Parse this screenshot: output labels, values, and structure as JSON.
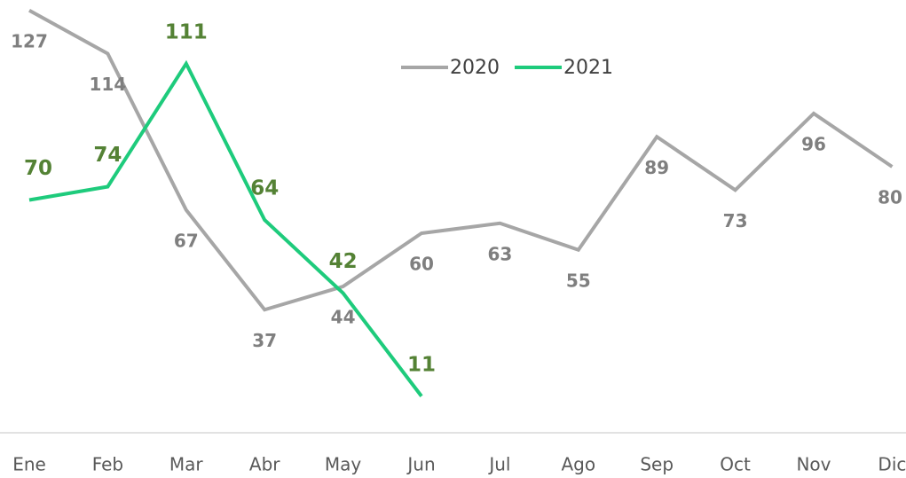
{
  "chart_data": {
    "type": "line",
    "categories": [
      "Ene",
      "Feb",
      "Mar",
      "Abr",
      "May",
      "Jun",
      "Jul",
      "Ago",
      "Sep",
      "Oct",
      "Nov",
      "Dic"
    ],
    "series": [
      {
        "name": "2020",
        "color": "#a6a6a6",
        "label_color": "#7f7f7f",
        "values": [
          127,
          114,
          67,
          37,
          44,
          60,
          63,
          55,
          89,
          73,
          96,
          80
        ]
      },
      {
        "name": "2021",
        "color": "#1ecb7c",
        "label_color": "#548235",
        "values": [
          70,
          74,
          111,
          64,
          42,
          11,
          null,
          null,
          null,
          null,
          null,
          null
        ]
      }
    ]
  }
}
